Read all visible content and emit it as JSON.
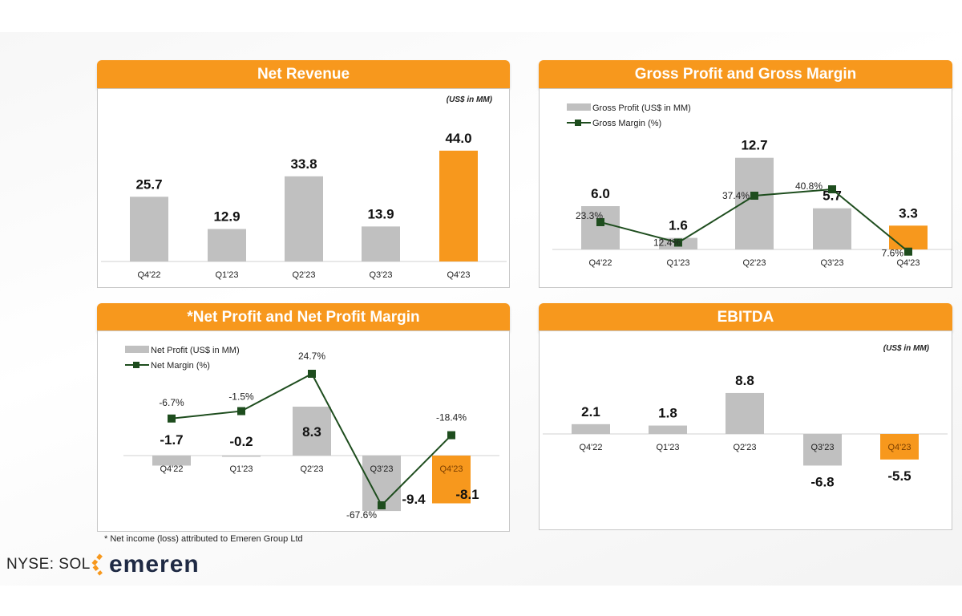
{
  "footer": {
    "ticker": "NYSE: SOL",
    "brand": "emeren",
    "footnote": "* Net income (loss) attributed to Emeren Group Ltd"
  },
  "colors": {
    "bar": "#c0c0c0",
    "highlight": "#f7981d",
    "line": "#1e4d1e",
    "header": "#f7981d"
  },
  "chart_data": [
    {
      "type": "bar",
      "title": "Net Revenue",
      "unit_label": "(US$ in MM)",
      "categories": [
        "Q4'22",
        "Q1'23",
        "Q2'23",
        "Q3'23",
        "Q4'23"
      ],
      "series": [
        {
          "values": [
            25.7,
            12.9,
            33.8,
            13.9,
            44.0
          ],
          "labels": [
            "25.7",
            "12.9",
            "33.8",
            "13.9",
            "44.0"
          ]
        }
      ],
      "highlight": "Q4'23"
    },
    {
      "type": "bar+line",
      "title": "Gross Profit and Gross Margin",
      "categories": [
        "Q4'22",
        "Q1'23",
        "Q2'23",
        "Q3'23",
        "Q4'23"
      ],
      "series": [
        {
          "name": "Gross Profit (US$ in MM)",
          "values": [
            6.0,
            1.6,
            12.7,
            5.7,
            3.3
          ],
          "labels": [
            "6.0",
            "1.6",
            "12.7",
            "5.7",
            "3.3"
          ]
        },
        {
          "name": "Gross Margin (%)",
          "values": [
            23.3,
            12.4,
            37.4,
            40.8,
            7.6
          ],
          "labels": [
            "23.3%",
            "12.4%",
            "37.4%",
            "40.8%",
            "7.6%"
          ]
        }
      ],
      "highlight": "Q4'23"
    },
    {
      "type": "bar+line",
      "title": "*Net Profit and Net Profit Margin",
      "categories": [
        "Q4'22",
        "Q1'23",
        "Q2'23",
        "Q3'23",
        "Q4'23"
      ],
      "series": [
        {
          "name": "Net Profit (US$ in MM)",
          "values": [
            -1.7,
            -0.2,
            8.3,
            -9.4,
            -8.1
          ],
          "labels": [
            "-1.7",
            "-0.2",
            "8.3",
            "-9.4",
            "-8.1"
          ]
        },
        {
          "name": "Net Margin (%)",
          "values": [
            -6.7,
            -1.5,
            24.7,
            -67.6,
            -18.4
          ],
          "labels": [
            "-6.7%",
            "-1.5%",
            "24.7%",
            "-67.6%",
            "-18.4%"
          ]
        }
      ],
      "highlight": "Q4'23"
    },
    {
      "type": "bar",
      "title": "EBITDA",
      "unit_label": "(US$ in MM)",
      "categories": [
        "Q4'22",
        "Q1'23",
        "Q2'23",
        "Q3'23",
        "Q4'23"
      ],
      "series": [
        {
          "values": [
            2.1,
            1.8,
            8.8,
            -6.8,
            -5.5
          ],
          "labels": [
            "2.1",
            "1.8",
            "8.8",
            "-6.8",
            "-5.5"
          ]
        }
      ],
      "highlight": "Q4'23"
    }
  ]
}
